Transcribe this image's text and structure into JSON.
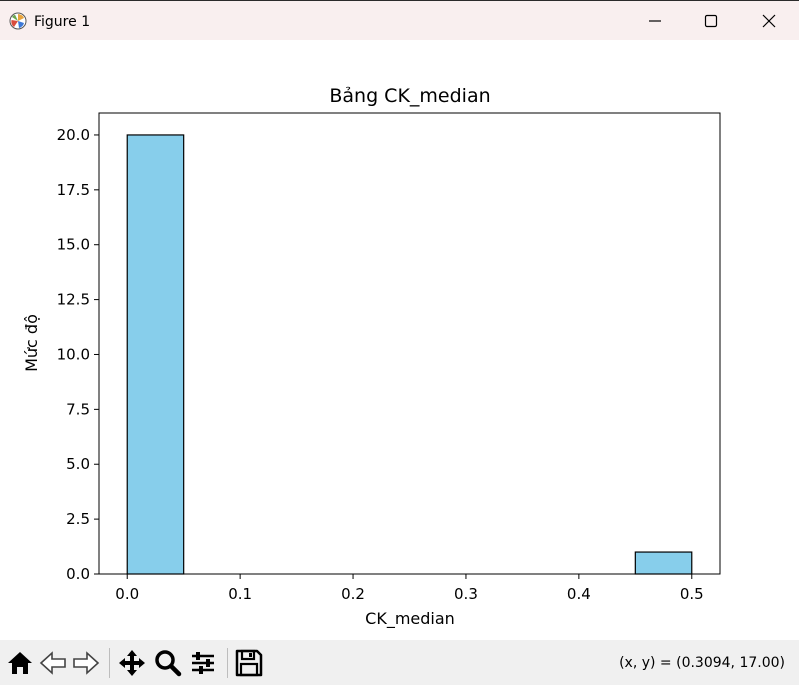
{
  "window": {
    "title": "Figure 1",
    "icon": "matplotlib-logo-icon",
    "controls": [
      "minimize-icon",
      "maximize-icon",
      "close-icon"
    ]
  },
  "toolbar": {
    "tools": [
      "home-icon",
      "back-arrow-icon",
      "forward-arrow-icon",
      "pan-move-icon",
      "zoom-magnifier-icon",
      "configure-subplots-icon",
      "save-floppy-icon"
    ],
    "coords": "(x, y) = (0.3094, 17.00)"
  },
  "chart_data": {
    "type": "bar",
    "title": "Bảng CK_median",
    "xlabel": "CK_median",
    "ylabel": "Mức độ",
    "bins": [
      {
        "start": 0.0,
        "end": 0.05,
        "count": 20
      },
      {
        "start": 0.05,
        "end": 0.1,
        "count": 0
      },
      {
        "start": 0.1,
        "end": 0.15,
        "count": 0
      },
      {
        "start": 0.15,
        "end": 0.2,
        "count": 0
      },
      {
        "start": 0.2,
        "end": 0.25,
        "count": 0
      },
      {
        "start": 0.25,
        "end": 0.3,
        "count": 0
      },
      {
        "start": 0.3,
        "end": 0.35,
        "count": 0
      },
      {
        "start": 0.35,
        "end": 0.4,
        "count": 0
      },
      {
        "start": 0.4,
        "end": 0.45,
        "count": 0
      },
      {
        "start": 0.45,
        "end": 0.5,
        "count": 1
      }
    ],
    "xlim": [
      -0.025,
      0.525
    ],
    "ylim": [
      0,
      21
    ],
    "xticks": [
      0.0,
      0.1,
      0.2,
      0.3,
      0.4,
      0.5
    ],
    "xtick_labels": [
      "0.0",
      "0.1",
      "0.2",
      "0.3",
      "0.4",
      "0.5"
    ],
    "yticks": [
      0.0,
      2.5,
      5.0,
      7.5,
      10.0,
      12.5,
      15.0,
      17.5,
      20.0
    ],
    "ytick_labels": [
      "0.0",
      "2.5",
      "5.0",
      "7.5",
      "10.0",
      "12.5",
      "15.0",
      "17.5",
      "20.0"
    ],
    "bar_color": "#87ceeb",
    "edge_color": "#000000",
    "grid": false,
    "legend": "none"
  }
}
